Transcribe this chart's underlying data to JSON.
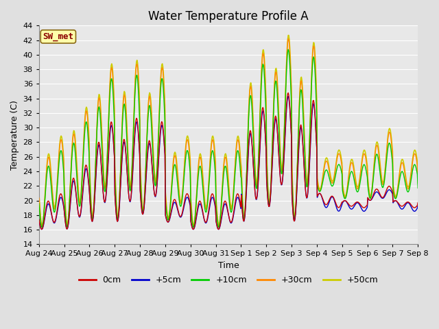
{
  "title": "Water Temperature Profile A",
  "xlabel": "Time",
  "ylabel": "Temperature (C)",
  "annotation": "SW_met",
  "ylim": [
    14,
    44
  ],
  "yticks": [
    14,
    16,
    18,
    20,
    22,
    24,
    26,
    28,
    30,
    32,
    34,
    36,
    38,
    40,
    42,
    44
  ],
  "xtick_labels": [
    "Aug 24",
    "Aug 25",
    "Aug 26",
    "Aug 27",
    "Aug 28",
    "Aug 29",
    "Aug 30",
    "Aug 31",
    "Sep 1",
    "Sep 2",
    "Sep 3",
    "Sep 4",
    "Sep 5",
    "Sep 6",
    "Sep 7",
    "Sep 8"
  ],
  "series_labels": [
    "0cm",
    "+5cm",
    "+10cm",
    "+30cm",
    "+50cm"
  ],
  "series_colors": [
    "#cc0000",
    "#0000cc",
    "#00cc00",
    "#ff8800",
    "#cccc00"
  ],
  "line_widths": [
    1.0,
    1.0,
    1.0,
    1.0,
    1.2
  ],
  "background_color": "#e0e0e0",
  "plot_background": "#e8e8e8",
  "grid_color": "#ffffff",
  "title_fontsize": 12,
  "axis_fontsize": 9,
  "tick_fontsize": 8,
  "legend_fontsize": 9,
  "figsize": [
    6.4,
    4.8
  ],
  "dpi": 100
}
